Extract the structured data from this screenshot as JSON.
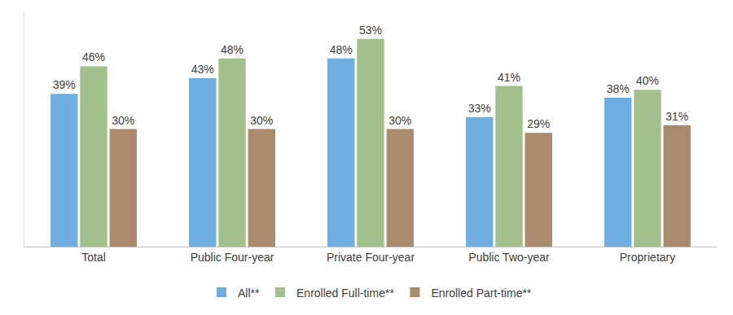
{
  "chart_data": {
    "type": "bar",
    "categories": [
      "Total",
      "Public Four-year",
      "Private Four-year",
      "Public Two-year",
      "Proprietary"
    ],
    "series": [
      {
        "name": "All**",
        "color": "#70ADE0",
        "values": [
          39,
          43,
          48,
          33,
          38
        ],
        "value_labels": [
          "39%",
          "43%",
          "48%",
          "33%",
          "38%"
        ]
      },
      {
        "name": "Enrolled Full-time**",
        "color": "#A2C08C",
        "values": [
          46,
          48,
          53,
          41,
          40
        ],
        "value_labels": [
          "46%",
          "48%",
          "53%",
          "41%",
          "40%"
        ]
      },
      {
        "name": "Enrolled Part-time**",
        "color": "#AA8B6D",
        "values": [
          30,
          30,
          30,
          29,
          31
        ],
        "value_labels": [
          "30%",
          "30%",
          "30%",
          "29%",
          "31%"
        ]
      }
    ],
    "ylim": [
      0,
      60
    ],
    "grid": false,
    "legend": "bottom",
    "data_labels": true,
    "tick_labels": "x"
  }
}
